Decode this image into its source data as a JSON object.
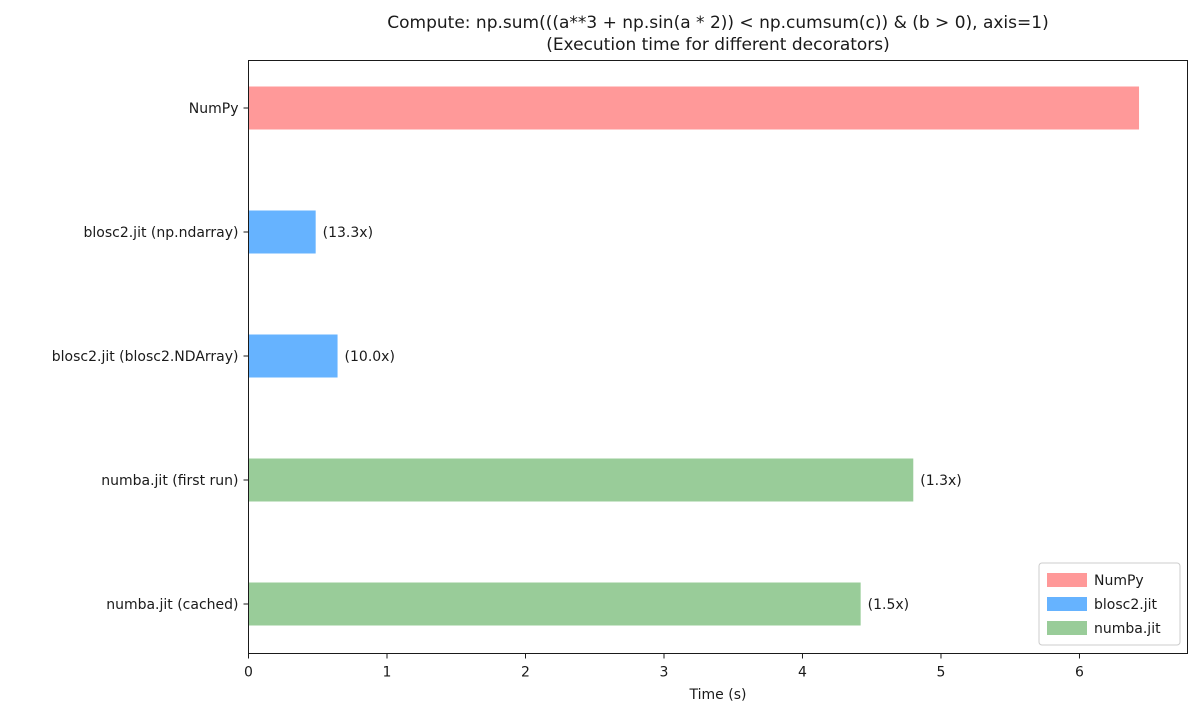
{
  "chart_data": {
    "type": "bar",
    "orientation": "horizontal",
    "title_lines": [
      "Compute: np.sum(((a**3 + np.sin(a * 2)) < np.cumsum(c)) & (b > 0), axis=1)",
      "(Execution time for different decorators)"
    ],
    "xlabel": "Time (s)",
    "ylabel": "",
    "xlim": [
      0,
      6.78
    ],
    "xticks": [
      0,
      1,
      2,
      3,
      4,
      5,
      6
    ],
    "grid": false,
    "legend_position": "bottom-right",
    "categories": [
      "NumPy",
      "blosc2.jit (np.ndarray)",
      "blosc2.jit (blosc2.NDArray)",
      "numba.jit (first run)",
      "numba.jit (cached)"
    ],
    "values": [
      6.43,
      0.485,
      0.643,
      4.8,
      4.42
    ],
    "bar_groups": [
      "NumPy",
      "blosc2.jit",
      "blosc2.jit",
      "numba.jit",
      "numba.jit"
    ],
    "bar_labels": [
      "",
      "(13.3x)",
      "(10.0x)",
      "(1.3x)",
      "(1.5x)"
    ],
    "series": [
      {
        "name": "NumPy",
        "color": "#ff9999"
      },
      {
        "name": "blosc2.jit",
        "color": "#66b3ff"
      },
      {
        "name": "numba.jit",
        "color": "#99cc99"
      }
    ]
  }
}
